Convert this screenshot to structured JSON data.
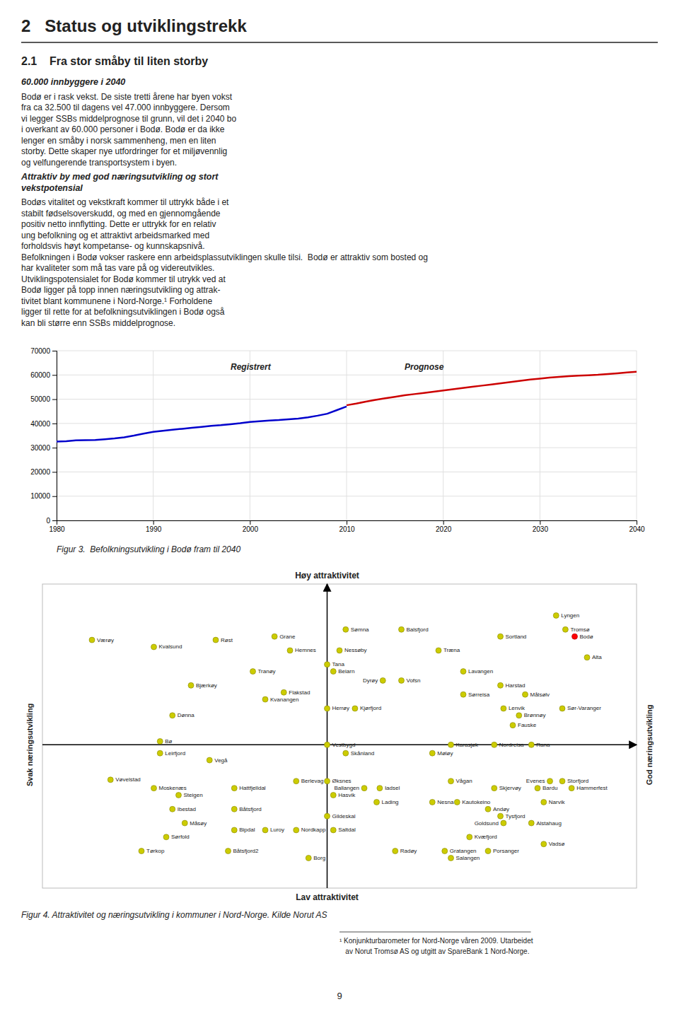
{
  "title": "2   Status og utviklingstrekk",
  "subtitle": "2.1    Fra stor småby til liten storby",
  "annotations": [
    [
      "60.000 innbyggere i 2040"
    ],
    [
      "Bodø er i rask vekst. De siste tretti årene har byen vokst",
      "fra ca 32.500 til dagens vel 47.000 innbyggere. Dersom",
      "vi legger SSBs middelprognose til grunn, vil det i 2040 bo",
      "i overkant av 60.000 personer i Bodø. Bodø er da ikke",
      "lenger en småby i norsk sammenheng, men en liten",
      "storby. Dette skaper nye utfordringer for et miljøvennlig",
      "og velfungerende transportsystem i byen."
    ],
    [
      "Attraktiv by med god næringsutvikling og stort",
      "vekstpotensial"
    ],
    [
      "Bodøs vitalitet og vekstkraft kommer til uttrykk både i et",
      "stabilt fødselsoverskudd, og med en gjennomgående",
      "positiv netto innflytting. Dette er uttrykk for en relativ",
      "ung befolkning og et attraktivt arbeidsmarked med",
      "forholdsvis høyt kompetanse- og kunnskapsnivå.",
      "Befolkningen i Bodø vokser raskere enn arbeidsplassutviklingen skulle tilsi.  Bodø er attraktiv som bosted og",
      "har kvaliteter som må tas vare på og videreutvikles.",
      "Utviklingspotensialet for Bodø kommer til utrykk ved at",
      "Bodø ligger på topp innen næringsutvikling og attrak-",
      "tivitet blant kommunene i Nord-Norge.¹ Forholdene",
      "ligger til rette for at befolkningsutviklingen i Bodø også",
      "kan bli større enn SSBs middelprognose."
    ],
    [
      "¹ Konjunkturbarometer for Nord-Norge våren 2009. Utarbeidet",
      "   av Norut Tromsø AS og utgitt av SpareBank 1 Nord-Norge."
    ],
    [
      "9"
    ]
  ],
  "chart_data": [
    {
      "type": "line",
      "title": "Figur 3.  Befolkningsutvikling i Bodø fram til 2040",
      "annotations": [
        "Registrert",
        "Prognose"
      ],
      "series": [
        {
          "x": [
            1980,
            1981,
            1982,
            1983,
            1984,
            1985,
            1986,
            1987,
            1988,
            1989,
            1990,
            1991,
            1992,
            1993,
            1994,
            1995,
            1996,
            1997,
            1998,
            1999,
            2000,
            2001,
            2002,
            2003,
            2004,
            2005,
            2006,
            2007,
            2008,
            2009,
            2010
          ],
          "values": [
            32500,
            32700,
            33000,
            33100,
            33200,
            33500,
            33800,
            34300,
            35000,
            35800,
            36500,
            37000,
            37400,
            37800,
            38200,
            38600,
            39000,
            39300,
            39700,
            40100,
            40600,
            40900,
            41200,
            41400,
            41700,
            42000,
            42500,
            43200,
            44000,
            45500,
            47000
          ],
          "color": "#0000CC"
        },
        {
          "x": [
            2010,
            2011,
            2012,
            2013,
            2014,
            2015,
            2016,
            2017,
            2018,
            2019,
            2020,
            2021,
            2022,
            2023,
            2024,
            2025,
            2026,
            2027,
            2028,
            2029,
            2030,
            2031,
            2032,
            2033,
            2034,
            2035,
            2036,
            2037,
            2038,
            2039,
            2040
          ],
          "values": [
            47500,
            48200,
            49000,
            49700,
            50400,
            51000,
            51600,
            52100,
            52600,
            53100,
            53600,
            54100,
            54600,
            55100,
            55600,
            56100,
            56600,
            57100,
            57600,
            58100,
            58500,
            58900,
            59200,
            59500,
            59700,
            59900,
            60100,
            60400,
            60700,
            61000,
            61300
          ],
          "color": "#CC0000"
        }
      ],
      "xlim": [
        1980,
        2040
      ],
      "ylim": [
        0,
        70000
      ],
      "xticks": [
        1980,
        1990,
        2000,
        2010,
        2020,
        2030,
        2040
      ],
      "yticks": [
        0,
        10000,
        20000,
        30000,
        40000,
        50000,
        60000,
        70000
      ],
      "grid": true
    },
    {
      "type": "scatter",
      "title": "Figur 4. Attraktivitet og næringsutvikling i kommuner i Nord-Norge. Kilde Norut AS",
      "annotations": [
        "Høy attraktivitet",
        "Lav attraktivitet",
        "Svak næringsutvikling",
        "God næringsutvikling"
      ],
      "labels": [
        "Værøy",
        "Kvalsund",
        "Røst",
        "Grane",
        "Hemnes",
        "Sømna",
        "Nessøby",
        "Balsfjord",
        "Træna",
        "Sortland",
        "Lyngen",
        "Bodø",
        "Tromsø",
        "Alta",
        "Tranøy",
        "Bjærkøy",
        "Beiarn",
        "Tana",
        "Flakstad",
        "Kvanangen",
        "Lavangen",
        "Harstad",
        "Målsølv",
        "Dønna",
        "Herrøy",
        "Kjørfjord",
        "Dyrøy",
        "Vofsn",
        "Sørreisa",
        "Lenvik",
        "Brønnøy",
        "Fauske",
        "Sør-Varanger",
        "Bø",
        "Leirfjord",
        "Vegå",
        "Vestbygd",
        "Skånland",
        "Karasjøk",
        "Nordreisa",
        "Møløy",
        "Rana",
        "Vøvelstad",
        "Moskenæs",
        "Steigen",
        "Hattfjelldal",
        "Ibestad",
        "Båtsfjord",
        "Berlevag",
        "Øksnes",
        "Hasvik",
        "Vågan",
        "Skjervøy",
        "Bardu",
        "Evenes",
        "Storfjord",
        "Hammerfest",
        "Måsøy",
        "Bipdal",
        "Luroy",
        "Nordkapp",
        "Lading",
        "Nesna",
        "Kautokeino",
        "Andøy",
        "Tysfjord",
        "Goldsund",
        "Narvik",
        "Alstahaug",
        "Gildeskal",
        "Saltdal",
        "Ballangen",
        "Iadsel",
        "Tørkop",
        "Båtsfjord2",
        "Borg",
        "Kvæfjord",
        "Radøy",
        "Gratangen",
        "Porsanger",
        "Vadsø",
        "Salangen",
        "Sørfold"
      ],
      "x": [
        -3.8,
        -2.8,
        -1.8,
        -0.85,
        -0.6,
        0.3,
        0.2,
        1.2,
        1.8,
        2.8,
        3.7,
        4.0,
        3.85,
        4.2,
        -1.2,
        -2.2,
        0.1,
        0.0,
        -0.7,
        -1.0,
        2.2,
        2.8,
        3.2,
        -2.5,
        0.0,
        0.45,
        0.9,
        1.2,
        2.2,
        2.85,
        3.1,
        3.0,
        3.8,
        -2.7,
        -2.7,
        -1.9,
        0.0,
        0.3,
        2.0,
        2.7,
        1.7,
        3.3,
        -3.5,
        -2.8,
        -2.4,
        -1.5,
        -2.5,
        -1.5,
        -0.5,
        0.0,
        0.1,
        2.0,
        2.7,
        3.4,
        3.6,
        3.8,
        3.95,
        -2.3,
        -1.5,
        -1.0,
        -0.5,
        0.8,
        1.7,
        2.1,
        2.6,
        2.8,
        2.85,
        3.5,
        3.3,
        0.0,
        0.1,
        0.6,
        0.85,
        -3.0,
        -1.6,
        -0.3,
        2.3,
        1.1,
        1.9,
        2.6,
        3.5,
        2.0,
        -2.6
      ],
      "values": [
        1.5,
        1.4,
        1.5,
        1.55,
        1.35,
        1.65,
        1.35,
        1.65,
        1.35,
        1.55,
        1.85,
        1.55,
        1.65,
        1.25,
        1.05,
        0.85,
        1.05,
        1.15,
        0.75,
        0.65,
        1.05,
        0.85,
        0.72,
        0.42,
        0.52,
        0.52,
        0.92,
        0.92,
        0.72,
        0.52,
        0.42,
        0.28,
        0.52,
        0.05,
        -0.12,
        -0.22,
        0.0,
        -0.12,
        0.0,
        0.0,
        -0.12,
        0.0,
        -0.5,
        -0.62,
        -0.72,
        -0.62,
        -0.92,
        -0.92,
        -0.52,
        -0.52,
        -0.72,
        -0.52,
        -0.62,
        -0.62,
        -0.52,
        -0.52,
        -0.62,
        -1.12,
        -1.22,
        -1.22,
        -1.22,
        -0.82,
        -0.82,
        -0.82,
        -0.92,
        -1.02,
        -1.12,
        -0.82,
        -1.12,
        -1.02,
        -1.22,
        -0.62,
        -0.62,
        -1.52,
        -1.52,
        -1.62,
        -1.32,
        -1.52,
        -1.52,
        -1.52,
        -1.42,
        -1.62,
        -1.32
      ],
      "colors": [
        "#CCCC00",
        "#CCCC00",
        "#CCCC00",
        "#CCCC00",
        "#CCCC00",
        "#CCCC00",
        "#CCCC00",
        "#CCCC00",
        "#CCCC00",
        "#CCCC00",
        "#CCCC00",
        "red",
        "#CCCC00",
        "#CCCC00",
        "#CCCC00",
        "#CCCC00",
        "#CCCC00",
        "#CCCC00",
        "#CCCC00",
        "#CCCC00",
        "#CCCC00",
        "#CCCC00",
        "#CCCC00",
        "#CCCC00",
        "#CCCC00",
        "#CCCC00",
        "#CCCC00",
        "#CCCC00",
        "#CCCC00",
        "#CCCC00",
        "#CCCC00",
        "#CCCC00",
        "#CCCC00",
        "#CCCC00",
        "#CCCC00",
        "#CCCC00",
        "#CCCC00",
        "#CCCC00",
        "#CCCC00",
        "#CCCC00",
        "#CCCC00",
        "#CCCC00",
        "#CCCC00",
        "#CCCC00",
        "#CCCC00",
        "#CCCC00",
        "#CCCC00",
        "#CCCC00",
        "#CCCC00",
        "#CCCC00",
        "#CCCC00",
        "#CCCC00",
        "#CCCC00",
        "#CCCC00",
        "#CCCC00",
        "#CCCC00",
        "#CCCC00",
        "#CCCC00",
        "#CCCC00",
        "#CCCC00",
        "#CCCC00",
        "#CCCC00",
        "#CCCC00",
        "#CCCC00",
        "#CCCC00",
        "#CCCC00",
        "#CCCC00",
        "#CCCC00",
        "#CCCC00",
        "#CCCC00",
        "#CCCC00",
        "#CCCC00",
        "#CCCC00",
        "#CCCC00",
        "#CCCC00",
        "#CCCC00",
        "#CCCC00",
        "#CCCC00",
        "#CCCC00",
        "#CCCC00",
        "#CCCC00",
        "#CCCC00",
        "#CCCC00"
      ],
      "xlim": [
        -4.6,
        5.0
      ],
      "ylim": [
        -2.05,
        2.3
      ],
      "tick_labels": false
    }
  ]
}
